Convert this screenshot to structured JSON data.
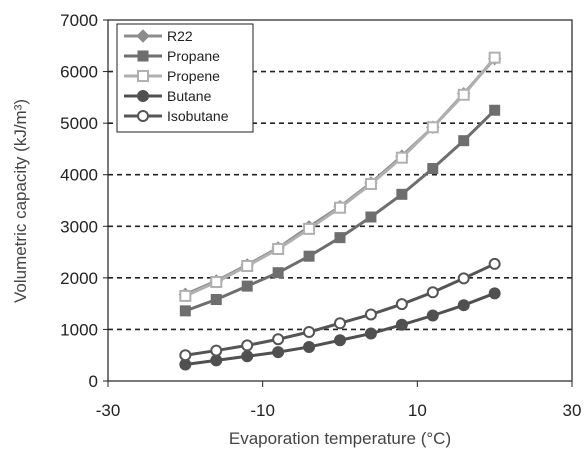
{
  "chart_data": {
    "type": "line",
    "xlabel": "Evaporation temperature (°C)",
    "ylabel": "Volumetric capacity (kJ/m³)",
    "xlim": [
      -30,
      30
    ],
    "ylim": [
      0,
      7000
    ],
    "x_ticks": [
      "-30",
      "-10",
      "10",
      "30"
    ],
    "x_tick_values": [
      -30,
      -10,
      10,
      30
    ],
    "y_ticks": [
      "0",
      "1000",
      "2000",
      "3000",
      "4000",
      "5000",
      "6000",
      "7000"
    ],
    "y_tick_values": [
      0,
      1000,
      2000,
      3000,
      4000,
      5000,
      6000,
      7000
    ],
    "grid": "dashed horizontal",
    "legend_position": "top-left",
    "x": [
      -20,
      -16,
      -12,
      -8,
      -4,
      0,
      4,
      8,
      12,
      16,
      20
    ],
    "series": [
      {
        "name": "R22",
        "marker": "diamond",
        "color": "#8c8c8c",
        "values": [
          1680,
          1940,
          2250,
          2580,
          2990,
          3380,
          3840,
          4360,
          4920,
          5570,
          6250
        ]
      },
      {
        "name": "Propane",
        "marker": "square",
        "color": "#6e6e6e",
        "values": [
          1360,
          1580,
          1840,
          2100,
          2420,
          2780,
          3180,
          3620,
          4120,
          4660,
          5250
        ]
      },
      {
        "name": "Propene",
        "marker": "square-open",
        "color": "#b0b0b0",
        "values": [
          1650,
          1920,
          2230,
          2560,
          2950,
          3360,
          3820,
          4330,
          4920,
          5550,
          6270
        ]
      },
      {
        "name": "Butane",
        "marker": "circle",
        "color": "#505050",
        "values": [
          320,
          400,
          480,
          560,
          660,
          790,
          920,
          1090,
          1270,
          1470,
          1700
        ]
      },
      {
        "name": "Isobutane",
        "marker": "circle-open",
        "color": "#555555",
        "values": [
          500,
          590,
          690,
          810,
          950,
          1120,
          1290,
          1490,
          1720,
          1990,
          2270
        ]
      }
    ]
  }
}
